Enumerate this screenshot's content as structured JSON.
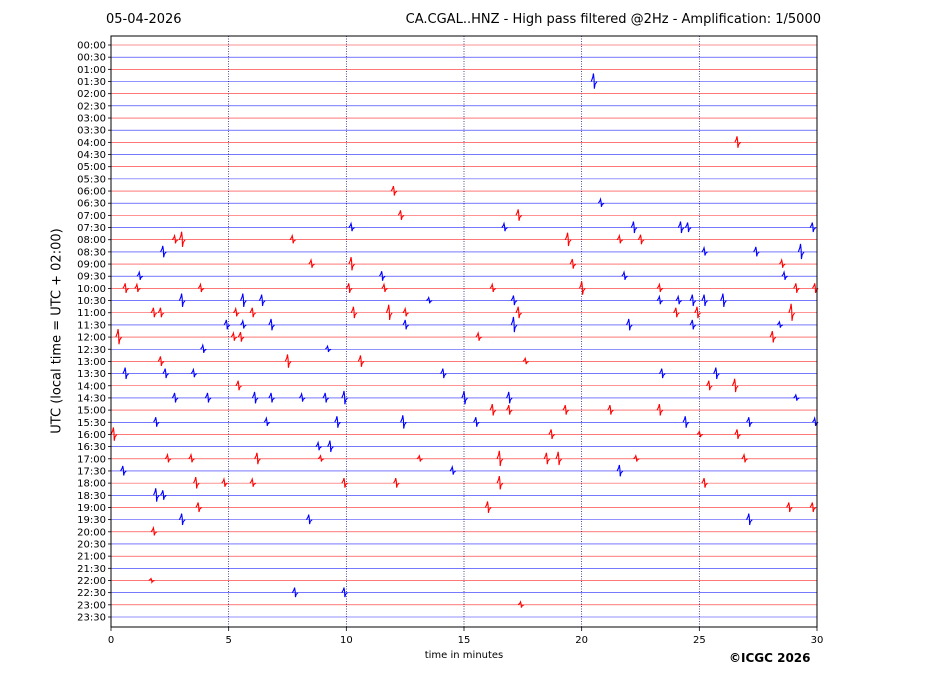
{
  "header": {
    "date": "05-04-2026",
    "title": "CA.CGAL..HNZ - High pass filtered @2Hz - Amplification: 1/5000"
  },
  "footer": {
    "copyright": "©ICGC 2026"
  },
  "chart_data": {
    "type": "line",
    "title": "CA.CGAL..HNZ - High pass filtered @2Hz - Amplification: 1/5000",
    "xlabel": "time in minutes",
    "ylabel": "UTC (local time = UTC + 02:00)",
    "xlim": [
      0,
      30
    ],
    "xticks": [
      0,
      5,
      10,
      15,
      20,
      25,
      30
    ],
    "vertical_gridlines": [
      5,
      10,
      15,
      20,
      25
    ],
    "rows": [
      "00:00",
      "00:30",
      "01:00",
      "01:30",
      "02:00",
      "02:30",
      "03:00",
      "03:30",
      "04:00",
      "04:30",
      "05:00",
      "05:30",
      "06:00",
      "06:30",
      "07:00",
      "07:30",
      "08:00",
      "08:30",
      "09:00",
      "09:30",
      "10:00",
      "10:30",
      "11:00",
      "11:30",
      "12:00",
      "12:30",
      "13:00",
      "13:30",
      "14:00",
      "14:30",
      "15:00",
      "15:30",
      "16:00",
      "16:30",
      "17:00",
      "17:30",
      "18:00",
      "18:30",
      "19:00",
      "19:30",
      "20:00",
      "20:30",
      "21:00",
      "21:30",
      "22:00",
      "22:30",
      "23:00",
      "23:30"
    ],
    "colors": {
      "even_row": "#ff0000",
      "odd_row": "#0000ff"
    },
    "events": [
      {
        "row": "01:30",
        "minute": 20.5,
        "amp": 8
      },
      {
        "row": "04:00",
        "minute": 26.6,
        "amp": 6
      },
      {
        "row": "06:00",
        "minute": 12.0,
        "amp": 5
      },
      {
        "row": "06:30",
        "minute": 20.8,
        "amp": 4
      },
      {
        "row": "07:00",
        "minute": 12.3,
        "amp": 5
      },
      {
        "row": "07:00",
        "minute": 17.3,
        "amp": 6
      },
      {
        "row": "07:30",
        "minute": 10.2,
        "amp": 4
      },
      {
        "row": "07:30",
        "minute": 16.7,
        "amp": 4
      },
      {
        "row": "07:30",
        "minute": 22.2,
        "amp": 6
      },
      {
        "row": "07:30",
        "minute": 24.2,
        "amp": 6
      },
      {
        "row": "07:30",
        "minute": 24.5,
        "amp": 5
      },
      {
        "row": "07:30",
        "minute": 29.8,
        "amp": 5
      },
      {
        "row": "08:00",
        "minute": 2.7,
        "amp": 4
      },
      {
        "row": "08:00",
        "minute": 3.0,
        "amp": 8
      },
      {
        "row": "08:00",
        "minute": 7.7,
        "amp": 4
      },
      {
        "row": "08:00",
        "minute": 19.4,
        "amp": 7
      },
      {
        "row": "08:00",
        "minute": 21.6,
        "amp": 4
      },
      {
        "row": "08:00",
        "minute": 22.5,
        "amp": 5
      },
      {
        "row": "08:30",
        "minute": 2.2,
        "amp": 6
      },
      {
        "row": "08:30",
        "minute": 25.2,
        "amp": 4
      },
      {
        "row": "08:30",
        "minute": 27.4,
        "amp": 5
      },
      {
        "row": "08:30",
        "minute": 29.3,
        "amp": 8
      },
      {
        "row": "09:00",
        "minute": 8.5,
        "amp": 4
      },
      {
        "row": "09:00",
        "minute": 10.2,
        "amp": 7
      },
      {
        "row": "09:00",
        "minute": 19.6,
        "amp": 5
      },
      {
        "row": "09:00",
        "minute": 28.5,
        "amp": 4
      },
      {
        "row": "09:30",
        "minute": 1.2,
        "amp": 4
      },
      {
        "row": "09:30",
        "minute": 11.5,
        "amp": 5
      },
      {
        "row": "09:30",
        "minute": 21.8,
        "amp": 4
      },
      {
        "row": "09:30",
        "minute": 28.6,
        "amp": 4
      },
      {
        "row": "10:00",
        "minute": 0.6,
        "amp": 5
      },
      {
        "row": "10:00",
        "minute": 1.1,
        "amp": 4
      },
      {
        "row": "10:00",
        "minute": 3.8,
        "amp": 4
      },
      {
        "row": "10:00",
        "minute": 10.1,
        "amp": 5
      },
      {
        "row": "10:00",
        "minute": 11.6,
        "amp": 4
      },
      {
        "row": "10:00",
        "minute": 16.2,
        "amp": 4
      },
      {
        "row": "10:00",
        "minute": 20.0,
        "amp": 7
      },
      {
        "row": "10:00",
        "minute": 23.3,
        "amp": 4
      },
      {
        "row": "10:00",
        "minute": 29.1,
        "amp": 5
      },
      {
        "row": "10:00",
        "minute": 29.9,
        "amp": 5
      },
      {
        "row": "10:30",
        "minute": 3.0,
        "amp": 7
      },
      {
        "row": "10:30",
        "minute": 5.6,
        "amp": 7
      },
      {
        "row": "10:30",
        "minute": 6.4,
        "amp": 6
      },
      {
        "row": "10:30",
        "minute": 13.5,
        "amp": 3
      },
      {
        "row": "10:30",
        "minute": 17.1,
        "amp": 5
      },
      {
        "row": "10:30",
        "minute": 23.3,
        "amp": 4
      },
      {
        "row": "10:30",
        "minute": 24.1,
        "amp": 4
      },
      {
        "row": "10:30",
        "minute": 24.7,
        "amp": 6
      },
      {
        "row": "10:30",
        "minute": 25.2,
        "amp": 6
      },
      {
        "row": "10:30",
        "minute": 26.0,
        "amp": 7
      },
      {
        "row": "11:00",
        "minute": 1.8,
        "amp": 5
      },
      {
        "row": "11:00",
        "minute": 2.1,
        "amp": 5
      },
      {
        "row": "11:00",
        "minute": 5.3,
        "amp": 4
      },
      {
        "row": "11:00",
        "minute": 6.0,
        "amp": 5
      },
      {
        "row": "11:00",
        "minute": 10.3,
        "amp": 6
      },
      {
        "row": "11:00",
        "minute": 11.8,
        "amp": 8
      },
      {
        "row": "11:00",
        "minute": 12.5,
        "amp": 4
      },
      {
        "row": "11:00",
        "minute": 17.3,
        "amp": 6
      },
      {
        "row": "11:00",
        "minute": 24.0,
        "amp": 5
      },
      {
        "row": "11:00",
        "minute": 24.9,
        "amp": 6
      },
      {
        "row": "11:00",
        "minute": 28.9,
        "amp": 9
      },
      {
        "row": "11:30",
        "minute": 4.9,
        "amp": 5
      },
      {
        "row": "11:30",
        "minute": 5.6,
        "amp": 4
      },
      {
        "row": "11:30",
        "minute": 6.8,
        "amp": 6
      },
      {
        "row": "11:30",
        "minute": 12.5,
        "amp": 5
      },
      {
        "row": "11:30",
        "minute": 17.1,
        "amp": 8
      },
      {
        "row": "11:30",
        "minute": 22.0,
        "amp": 6
      },
      {
        "row": "11:30",
        "minute": 24.7,
        "amp": 5
      },
      {
        "row": "11:30",
        "minute": 28.4,
        "amp": 3
      },
      {
        "row": "12:00",
        "minute": 0.3,
        "amp": 8
      },
      {
        "row": "12:00",
        "minute": 5.2,
        "amp": 4
      },
      {
        "row": "12:00",
        "minute": 5.5,
        "amp": 5
      },
      {
        "row": "12:00",
        "minute": 15.6,
        "amp": 4
      },
      {
        "row": "12:00",
        "minute": 28.1,
        "amp": 6
      },
      {
        "row": "12:30",
        "minute": 3.9,
        "amp": 4
      },
      {
        "row": "12:30",
        "minute": 9.2,
        "amp": 3
      },
      {
        "row": "13:00",
        "minute": 2.1,
        "amp": 5
      },
      {
        "row": "13:00",
        "minute": 7.5,
        "amp": 7
      },
      {
        "row": "13:00",
        "minute": 10.6,
        "amp": 6
      },
      {
        "row": "13:00",
        "minute": 17.6,
        "amp": 3
      },
      {
        "row": "13:30",
        "minute": 0.6,
        "amp": 6
      },
      {
        "row": "13:30",
        "minute": 2.3,
        "amp": 5
      },
      {
        "row": "13:30",
        "minute": 3.5,
        "amp": 4
      },
      {
        "row": "13:30",
        "minute": 14.1,
        "amp": 5
      },
      {
        "row": "13:30",
        "minute": 23.4,
        "amp": 5
      },
      {
        "row": "13:30",
        "minute": 25.7,
        "amp": 6
      },
      {
        "row": "14:00",
        "minute": 5.4,
        "amp": 5
      },
      {
        "row": "14:00",
        "minute": 25.4,
        "amp": 5
      },
      {
        "row": "14:00",
        "minute": 26.5,
        "amp": 7
      },
      {
        "row": "14:30",
        "minute": 2.7,
        "amp": 5
      },
      {
        "row": "14:30",
        "minute": 4.1,
        "amp": 5
      },
      {
        "row": "14:30",
        "minute": 6.1,
        "amp": 6
      },
      {
        "row": "14:30",
        "minute": 6.8,
        "amp": 5
      },
      {
        "row": "14:30",
        "minute": 8.1,
        "amp": 4
      },
      {
        "row": "14:30",
        "minute": 9.1,
        "amp": 5
      },
      {
        "row": "14:30",
        "minute": 9.9,
        "amp": 7
      },
      {
        "row": "14:30",
        "minute": 15.0,
        "amp": 7
      },
      {
        "row": "14:30",
        "minute": 16.9,
        "amp": 6
      },
      {
        "row": "14:30",
        "minute": 29.1,
        "amp": 3
      },
      {
        "row": "15:00",
        "minute": 16.2,
        "amp": 6
      },
      {
        "row": "15:00",
        "minute": 16.9,
        "amp": 5
      },
      {
        "row": "15:00",
        "minute": 19.3,
        "amp": 5
      },
      {
        "row": "15:00",
        "minute": 21.2,
        "amp": 5
      },
      {
        "row": "15:00",
        "minute": 23.3,
        "amp": 6
      },
      {
        "row": "15:30",
        "minute": 1.9,
        "amp": 5
      },
      {
        "row": "15:30",
        "minute": 6.6,
        "amp": 4
      },
      {
        "row": "15:30",
        "minute": 9.6,
        "amp": 6
      },
      {
        "row": "15:30",
        "minute": 12.4,
        "amp": 7
      },
      {
        "row": "15:30",
        "minute": 15.5,
        "amp": 5
      },
      {
        "row": "15:30",
        "minute": 24.4,
        "amp": 6
      },
      {
        "row": "15:30",
        "minute": 27.1,
        "amp": 5
      },
      {
        "row": "15:30",
        "minute": 29.9,
        "amp": 4
      },
      {
        "row": "16:00",
        "minute": 0.1,
        "amp": 7
      },
      {
        "row": "16:00",
        "minute": 18.7,
        "amp": 5
      },
      {
        "row": "16:00",
        "minute": 25.0,
        "amp": 3
      },
      {
        "row": "16:00",
        "minute": 26.6,
        "amp": 5
      },
      {
        "row": "16:30",
        "minute": 8.8,
        "amp": 4
      },
      {
        "row": "16:30",
        "minute": 9.3,
        "amp": 6
      },
      {
        "row": "17:00",
        "minute": 2.4,
        "amp": 4
      },
      {
        "row": "17:00",
        "minute": 3.4,
        "amp": 4
      },
      {
        "row": "17:00",
        "minute": 6.2,
        "amp": 6
      },
      {
        "row": "17:00",
        "minute": 8.9,
        "amp": 3
      },
      {
        "row": "17:00",
        "minute": 13.1,
        "amp": 3
      },
      {
        "row": "17:00",
        "minute": 16.5,
        "amp": 8
      },
      {
        "row": "17:00",
        "minute": 18.5,
        "amp": 6
      },
      {
        "row": "17:00",
        "minute": 19.0,
        "amp": 7
      },
      {
        "row": "17:00",
        "minute": 22.3,
        "amp": 3
      },
      {
        "row": "17:00",
        "minute": 26.9,
        "amp": 4
      },
      {
        "row": "17:30",
        "minute": 0.5,
        "amp": 5
      },
      {
        "row": "17:30",
        "minute": 14.5,
        "amp": 4
      },
      {
        "row": "17:30",
        "minute": 21.6,
        "amp": 6
      },
      {
        "row": "18:00",
        "minute": 3.6,
        "amp": 6
      },
      {
        "row": "18:00",
        "minute": 4.8,
        "amp": 4
      },
      {
        "row": "18:00",
        "minute": 6.0,
        "amp": 4
      },
      {
        "row": "18:00",
        "minute": 9.9,
        "amp": 5
      },
      {
        "row": "18:00",
        "minute": 12.1,
        "amp": 5
      },
      {
        "row": "18:00",
        "minute": 16.5,
        "amp": 7
      },
      {
        "row": "18:00",
        "minute": 25.2,
        "amp": 5
      },
      {
        "row": "18:30",
        "minute": 1.9,
        "amp": 7
      },
      {
        "row": "18:30",
        "minute": 2.2,
        "amp": 5
      },
      {
        "row": "19:00",
        "minute": 3.7,
        "amp": 5
      },
      {
        "row": "19:00",
        "minute": 16.0,
        "amp": 6
      },
      {
        "row": "19:00",
        "minute": 28.8,
        "amp": 5
      },
      {
        "row": "19:00",
        "minute": 29.8,
        "amp": 5
      },
      {
        "row": "19:30",
        "minute": 3.0,
        "amp": 6
      },
      {
        "row": "19:30",
        "minute": 8.4,
        "amp": 5
      },
      {
        "row": "19:30",
        "minute": 27.1,
        "amp": 6
      },
      {
        "row": "20:00",
        "minute": 1.8,
        "amp": 4
      },
      {
        "row": "22:00",
        "minute": 1.7,
        "amp": 2
      },
      {
        "row": "22:30",
        "minute": 7.8,
        "amp": 5
      },
      {
        "row": "22:30",
        "minute": 9.9,
        "amp": 5
      },
      {
        "row": "23:00",
        "minute": 17.4,
        "amp": 3
      }
    ]
  }
}
